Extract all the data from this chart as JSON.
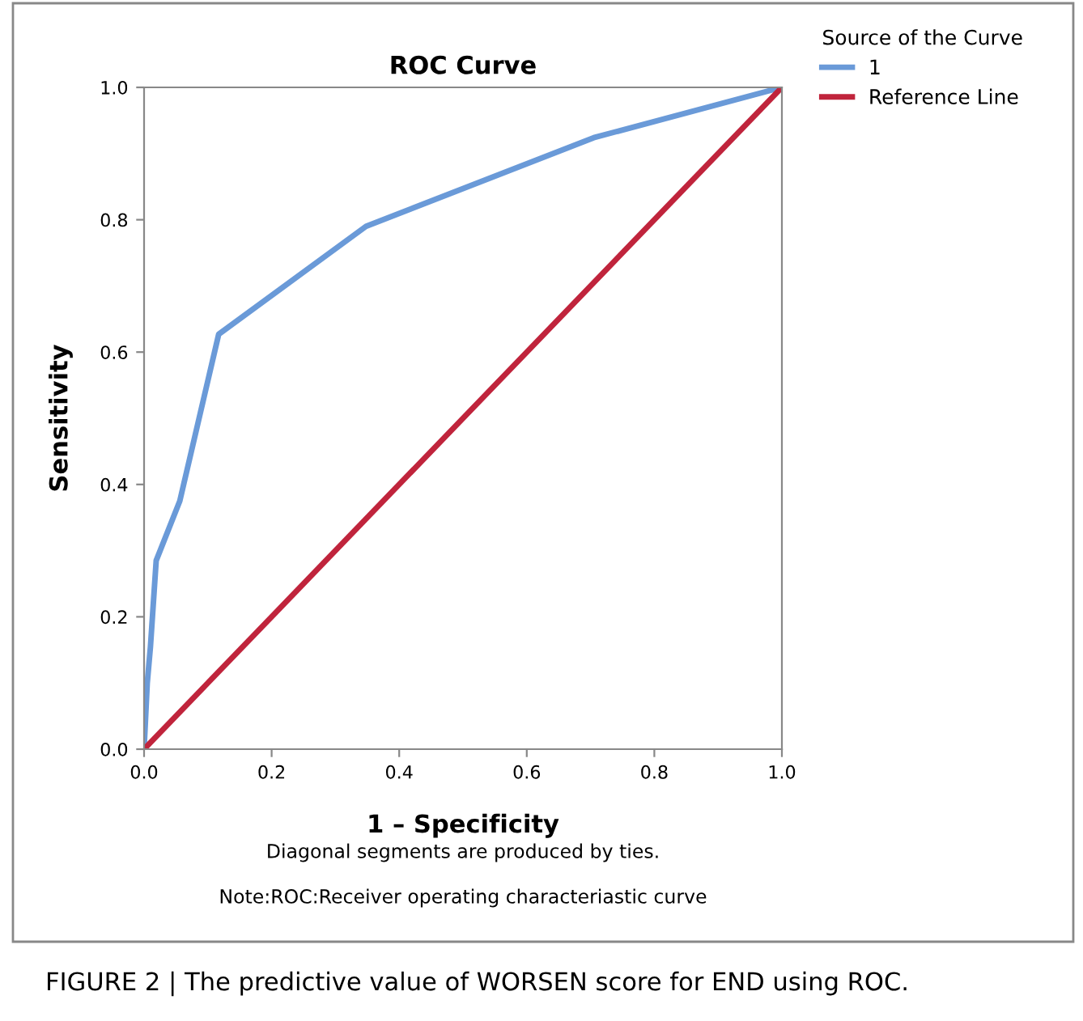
{
  "chart_data": {
    "type": "line",
    "title": "ROC Curve",
    "xlabel": "1 – Specificity",
    "ylabel": "Sensitivity",
    "legend_title": "Source of the Curve",
    "series": [
      {
        "name": "1",
        "color": "#6a9ad8",
        "x": [
          0,
          0.005,
          0.01,
          0.019,
          0.056,
          0.117,
          0.348,
          0.705,
          1.0
        ],
        "values": [
          0,
          0.1,
          0.155,
          0.285,
          0.375,
          0.627,
          0.79,
          0.924,
          1.0
        ]
      },
      {
        "name": "Reference Line",
        "color": "#c0243c",
        "x": [
          0,
          1.0
        ],
        "values": [
          0,
          1.0
        ]
      }
    ],
    "xlim": [
      0,
      1.0
    ],
    "ylim": [
      0,
      1.0
    ],
    "xticks": [
      {
        "value": 0,
        "label": "0.0"
      },
      0.2,
      0.4,
      0.6,
      0.8,
      {
        "value": 1.0,
        "label": "1.0"
      }
    ],
    "yticks": [
      {
        "value": 0,
        "label": "0.0"
      },
      0.2,
      0.4,
      0.6,
      0.8,
      {
        "value": 1.0,
        "label": "1.0"
      }
    ],
    "grid": false,
    "legend": "top right",
    "marker": "none",
    "line_style": "solid",
    "annotations": [
      "Diagonal segments are produced by ties.",
      "Note:ROC:Receiver operating characteriastic curve",
      "FIGURE 2 | The predictive value of WORSEN score for END using ROC."
    ]
  }
}
